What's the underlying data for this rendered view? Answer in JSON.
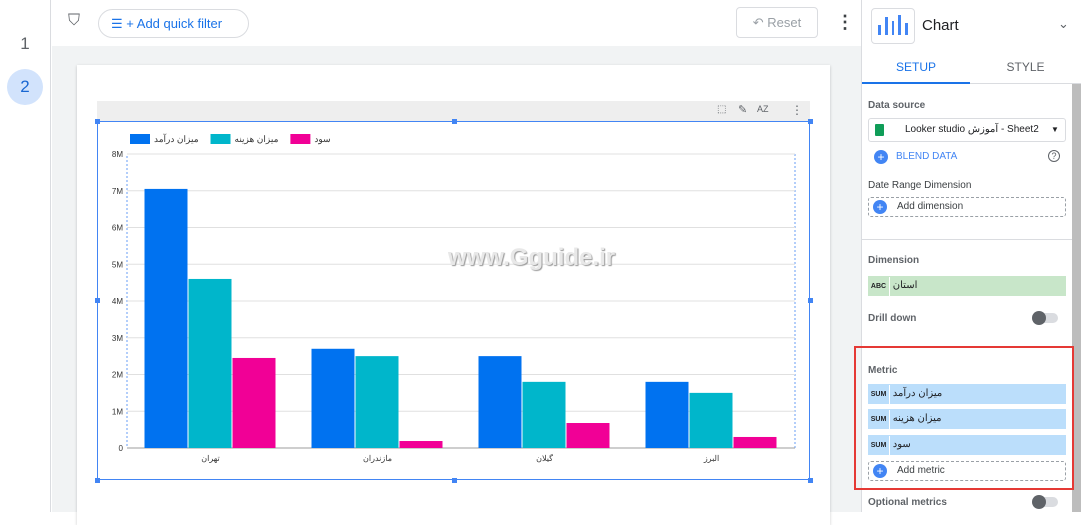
{
  "pages": [
    "1",
    "2"
  ],
  "toolbar": {
    "add_filter": "+ Add quick filter",
    "reset": "Reset"
  },
  "watermark": "www.Gguide.ir",
  "panel": {
    "title": "Chart",
    "tabs": [
      "SETUP",
      "STYLE"
    ],
    "data_source_label": "Data source",
    "data_source": "Looker studio آموزش - Sheet2",
    "blend": "BLEND DATA",
    "date_range_label": "Date Range Dimension",
    "add_dimension": "Add dimension",
    "dimension_label": "Dimension",
    "dimension": {
      "type": "ABC",
      "name": "استان"
    },
    "drill_down": "Drill down",
    "metric_label": "Metric",
    "metrics": [
      {
        "agg": "SUM",
        "name": "میزان درآمد"
      },
      {
        "agg": "SUM",
        "name": "میزان هزینه"
      },
      {
        "agg": "SUM",
        "name": "سود"
      }
    ],
    "add_metric": "Add metric",
    "optional_metrics": "Optional metrics"
  },
  "chart_data": {
    "type": "bar",
    "categories": [
      "تهران",
      "مازندران",
      "گیلان",
      "البرز"
    ],
    "series": [
      {
        "name": "میزان درآمد",
        "color": "#0072f0",
        "values": [
          7.05,
          2.7,
          2.5,
          1.8
        ]
      },
      {
        "name": "میزان هزینه",
        "color": "#00b6cb",
        "values": [
          4.6,
          2.5,
          1.8,
          1.5
        ]
      },
      {
        "name": "سود",
        "color": "#f10096",
        "values": [
          2.45,
          0.19,
          0.68,
          0.3
        ]
      }
    ],
    "unit": "M",
    "yticks": [
      "0",
      "1M",
      "2M",
      "3M",
      "4M",
      "5M",
      "6M",
      "7M",
      "8M"
    ],
    "ylim": [
      0,
      8
    ],
    "legend": "top-left",
    "grid": true
  }
}
